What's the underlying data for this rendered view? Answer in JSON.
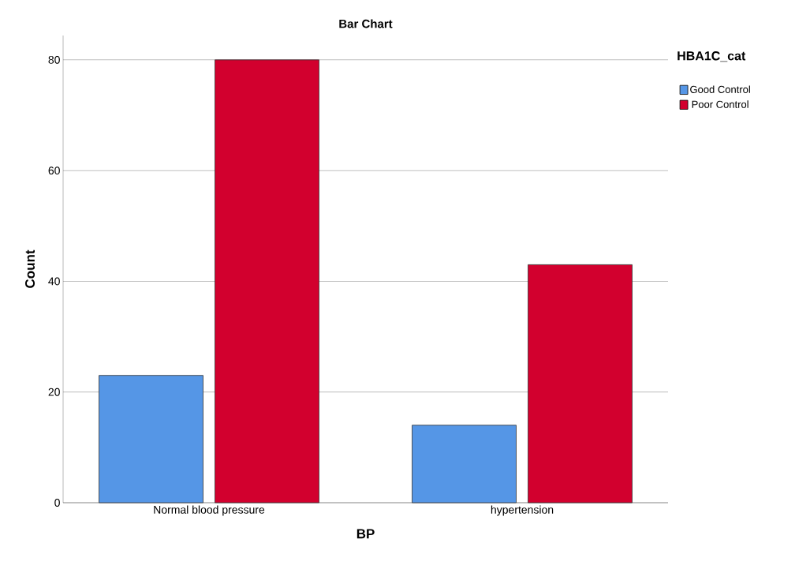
{
  "chart_data": {
    "type": "bar",
    "title": "Bar Chart",
    "xlabel": "BP",
    "ylabel": "Count",
    "legend_title": "HBA1C_cat",
    "categories": [
      "Normal blood pressure",
      "hypertension"
    ],
    "series": [
      {
        "name": "Good Control",
        "color": "#5596e6",
        "values": [
          23,
          14
        ]
      },
      {
        "name": "Poor Control",
        "color": "#d2002e",
        "values": [
          80,
          43
        ]
      }
    ],
    "ylim": [
      0,
      84.4
    ],
    "yticks": [
      0,
      20,
      40,
      60,
      80
    ],
    "grid": "y",
    "legend": "top right"
  }
}
